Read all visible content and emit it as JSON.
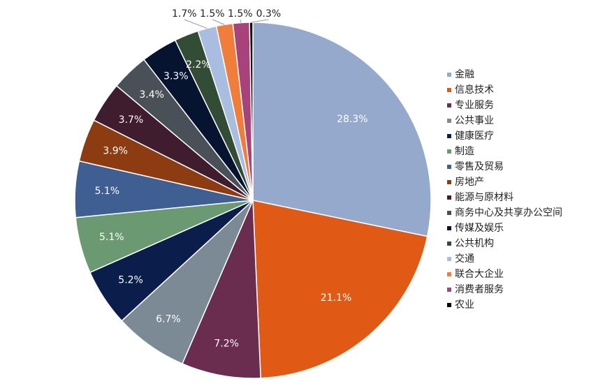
{
  "chart_data": {
    "type": "pie",
    "categories": [
      "金融",
      "信息技术",
      "专业服务",
      "公共事业",
      "健康医疗",
      "制造",
      "零售及贸易",
      "房地产",
      "能源与原材料",
      "商务中心及共享办公空间",
      "传媒及娱乐",
      "公共机构",
      "交通",
      "联合大企业",
      "消费者服务",
      "农业"
    ],
    "values": [
      28.3,
      21.1,
      7.2,
      6.7,
      5.2,
      5.1,
      5.1,
      3.9,
      3.7,
      3.4,
      3.3,
      2.2,
      1.7,
      1.5,
      1.5,
      0.3
    ],
    "value_labels": [
      "28.3%",
      "21.1%",
      "7.2%",
      "6.7%",
      "5.2%",
      "5.1%",
      "5.1%",
      "3.9%",
      "3.7%",
      "3.4%",
      "3.3%",
      "2.2%",
      "1.7%",
      "1.5%",
      "1.5%",
      "0.3%"
    ],
    "colors": [
      "#94a9cc",
      "#e05a16",
      "#6b2d4f",
      "#7b8a94",
      "#0b1d4a",
      "#6b9a72",
      "#3f5e91",
      "#8c3c10",
      "#3f1c2e",
      "#4a5058",
      "#061430",
      "#324c36",
      "#a9bde0",
      "#f07d3a",
      "#a8427a",
      "#000000"
    ],
    "legend": "right"
  }
}
